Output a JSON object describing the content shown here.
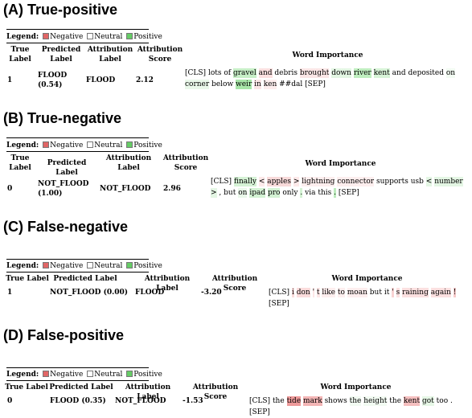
{
  "legend": {
    "label": "Legend:",
    "negative": "Negative",
    "neutral": "Neutral",
    "positive": "Positive"
  },
  "sections": [
    {
      "title": "(A) True-positive",
      "headers": {
        "true_label": "True Label",
        "predicted_label": "Predicted Label",
        "attribution_label": "Attribution Label",
        "attribution_score": "Attribution Score",
        "word_importance": "Word Importance"
      },
      "row": {
        "true_label": "1",
        "predicted_label": "FLOOD (0.54)",
        "attribution_label": "FLOOD",
        "attribution_score": "2.12"
      },
      "tokens": [
        {
          "t": "[CLS]",
          "c": "#ffffff"
        },
        {
          "t": "lots",
          "c": "#ffffff"
        },
        {
          "t": "of",
          "c": "#ffffff"
        },
        {
          "t": "gravel",
          "c": "#c7efc7"
        },
        {
          "t": "and",
          "c": "#fbe0e0"
        },
        {
          "t": "debris",
          "c": "#ffffff"
        },
        {
          "t": "brought",
          "c": "#fbe6e6"
        },
        {
          "t": "down",
          "c": "#e3f6e3"
        },
        {
          "t": "river",
          "c": "#bfeebf"
        },
        {
          "t": "kent",
          "c": "#d7f3d7"
        },
        {
          "t": "and",
          "c": "#ffffff"
        },
        {
          "t": "deposited",
          "c": "#ffffff"
        },
        {
          "t": "on",
          "c": "#f2fbf2"
        },
        {
          "t": "corner",
          "c": "#eaf8ea"
        },
        {
          "t": "below",
          "c": "#ffffff"
        },
        {
          "t": "weir",
          "c": "#a8e6a8"
        },
        {
          "t": "in",
          "c": "#fbe6e6"
        },
        {
          "t": "ken",
          "c": "#fdeeee"
        },
        {
          "t": "##dal",
          "c": "#ffffff"
        },
        {
          "t": "[SEP]",
          "c": "#ffffff"
        }
      ]
    },
    {
      "title": "(B) True-negative",
      "headers": {
        "true_label": "True Label",
        "predicted_label": "Predicted Label",
        "attribution_label": "Attribution Label",
        "attribution_score": "Attribution Score",
        "word_importance": "Word Importance"
      },
      "row": {
        "true_label": "0",
        "predicted_label": "NOT_FLOOD (1.00)",
        "attribution_label": "NOT_FLOOD",
        "attribution_score": "2.96"
      },
      "tokens": [
        {
          "t": "[CLS]",
          "c": "#ffffff"
        },
        {
          "t": "finally",
          "c": "#d5f2d5"
        },
        {
          "t": "<",
          "c": "#fde9e9"
        },
        {
          "t": "apples",
          "c": "#f8dada"
        },
        {
          "t": ">",
          "c": "#fde9e9"
        },
        {
          "t": "lightning",
          "c": "#fdeeee"
        },
        {
          "t": "connector",
          "c": "#fdeeee"
        },
        {
          "t": "supports",
          "c": "#ffffff"
        },
        {
          "t": "usb",
          "c": "#ffffff"
        },
        {
          "t": "<",
          "c": "#e4f6e4"
        },
        {
          "t": "number",
          "c": "#e4f6e4"
        },
        {
          "t": ">",
          "c": "#e4f6e4"
        },
        {
          "t": ",",
          "c": "#ffffff"
        },
        {
          "t": "but",
          "c": "#ffffff"
        },
        {
          "t": "on",
          "c": "#eaf8ea"
        },
        {
          "t": "ipad",
          "c": "#d3f2d3"
        },
        {
          "t": "pro",
          "c": "#d3f2d3"
        },
        {
          "t": "only",
          "c": "#ffffff"
        },
        {
          "t": ".",
          "c": "#d3f2d3"
        },
        {
          "t": "via",
          "c": "#ffffff"
        },
        {
          "t": "this",
          "c": "#ffffff"
        },
        {
          "t": ".",
          "c": "#bdebbd"
        },
        {
          "t": "[SEP]",
          "c": "#ffffff"
        }
      ]
    },
    {
      "title": "(C) False-negative",
      "headers": {
        "true_label": "True Label",
        "predicted_label": "Predicted Label",
        "attribution_label": "Attribution Label",
        "attribution_score": "Attribution Score",
        "word_importance": "Word Importance"
      },
      "row": {
        "true_label": "1",
        "predicted_label": "NOT_FLOOD (0.00)",
        "attribution_label": "FLOOD",
        "attribution_score": "-3.20"
      },
      "tokens": [
        {
          "t": "[CLS]",
          "c": "#ffffff"
        },
        {
          "t": "i",
          "c": "#fbdcdc"
        },
        {
          "t": "don",
          "c": "#fbdcdc"
        },
        {
          "t": "'",
          "c": "#fde6e6"
        },
        {
          "t": "t",
          "c": "#fde6e6"
        },
        {
          "t": "like",
          "c": "#fdeeee"
        },
        {
          "t": "to",
          "c": "#fdeeee"
        },
        {
          "t": "moan",
          "c": "#fdeeee"
        },
        {
          "t": "but",
          "c": "#ffffff"
        },
        {
          "t": "it",
          "c": "#ffffff"
        },
        {
          "t": "'",
          "c": "#f9d3d3"
        },
        {
          "t": "s",
          "c": "#fbe0e0"
        },
        {
          "t": "raining",
          "c": "#fbe0e0"
        },
        {
          "t": "again",
          "c": "#fbe0e0"
        },
        {
          "t": "!",
          "c": "#f7caca"
        },
        {
          "t": "[SEP]",
          "c": "#ffffff"
        }
      ]
    },
    {
      "title": "(D) False-positive",
      "headers": {
        "true_label": "True Label",
        "predicted_label": "Predicted Label",
        "attribution_label": "Attribution Label",
        "attribution_score": "Attribution Score",
        "word_importance": "Word Importance"
      },
      "row": {
        "true_label": "0",
        "predicted_label": "FLOOD (0.35)",
        "attribution_label": "NOT_FLOOD",
        "attribution_score": "-1.53"
      },
      "tokens": [
        {
          "t": "[CLS]",
          "c": "#ffffff"
        },
        {
          "t": "the",
          "c": "#ffffff"
        },
        {
          "t": "tide",
          "c": "#ee9a9a"
        },
        {
          "t": "mark",
          "c": "#f3b5b5"
        },
        {
          "t": "shows",
          "c": "#ffffff"
        },
        {
          "t": "the",
          "c": "#f2fbf2"
        },
        {
          "t": "height",
          "c": "#f2fbf2"
        },
        {
          "t": "the",
          "c": "#ffffff"
        },
        {
          "t": "kent",
          "c": "#f5bfbf"
        },
        {
          "t": "got",
          "c": "#e6f7e6"
        },
        {
          "t": "too",
          "c": "#ffffff"
        },
        {
          "t": ".",
          "c": "#ffffff"
        },
        {
          "t": "[SEP]",
          "c": "#ffffff"
        }
      ]
    }
  ]
}
